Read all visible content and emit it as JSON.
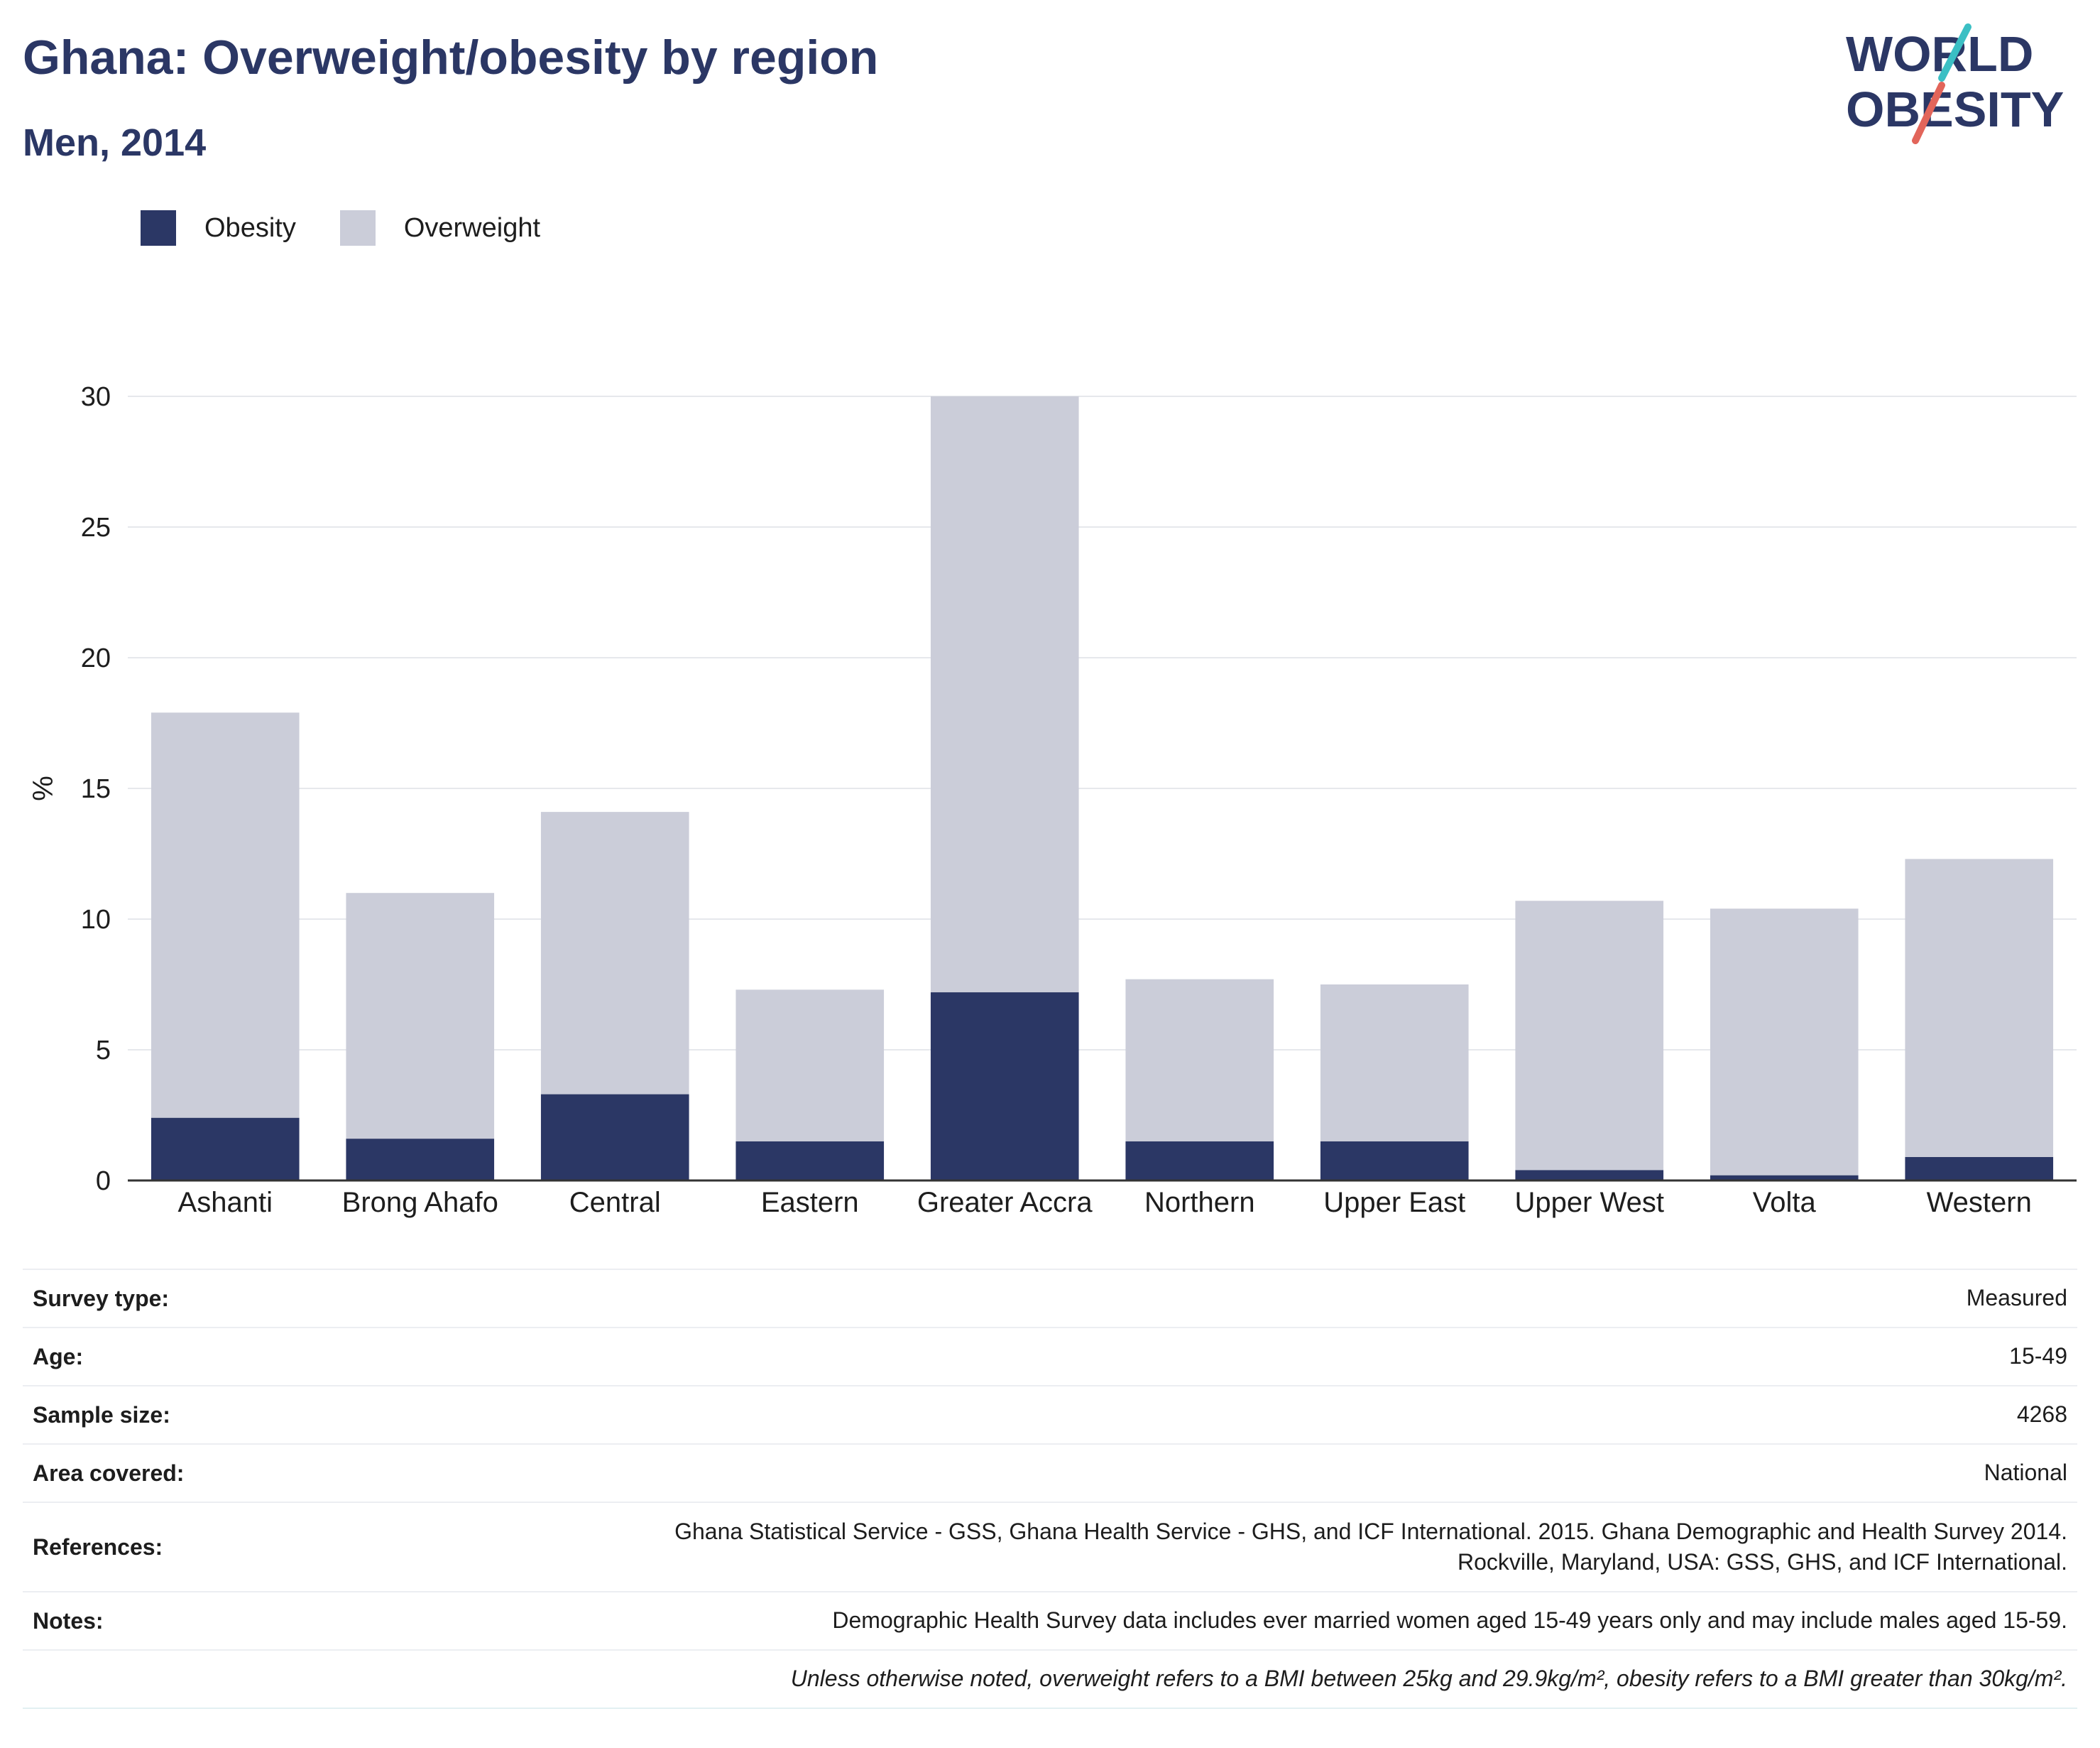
{
  "header": {
    "title": "Ghana: Overweight/obesity by region",
    "subtitle": "Men, 2014"
  },
  "logo": {
    "line1": "WORLD",
    "line2": "OBESITY",
    "colors": {
      "text": "#2b3765",
      "slash_top": "#3bbfc4",
      "slash_bottom": "#e2655a"
    }
  },
  "colors": {
    "obesity": "#2b3765",
    "overweight": "#cbcdd9",
    "grid": "#e6e8ec",
    "axis": "#333333"
  },
  "chart_data": {
    "type": "bar",
    "stacked": true,
    "categories": [
      "Ashanti",
      "Brong Ahafo",
      "Central",
      "Eastern",
      "Greater Accra",
      "Northern",
      "Upper East",
      "Upper West",
      "Volta",
      "Western"
    ],
    "series": [
      {
        "name": "Obesity",
        "values": [
          2.4,
          1.6,
          3.3,
          1.5,
          7.2,
          1.5,
          1.5,
          0.4,
          0.2,
          0.9
        ]
      },
      {
        "name": "Overweight",
        "values": [
          15.5,
          9.4,
          10.8,
          5.8,
          22.8,
          6.2,
          6.0,
          10.3,
          10.2,
          11.4
        ]
      }
    ],
    "ylabel": "%",
    "xlabel": "",
    "ylim": [
      0,
      30
    ],
    "yticks": [
      0,
      5,
      10,
      15,
      20,
      25,
      30
    ],
    "grid": true,
    "legend_position": "top-left"
  },
  "meta": [
    {
      "label": "Survey type:",
      "value": "Measured"
    },
    {
      "label": "Age:",
      "value": "15-49"
    },
    {
      "label": "Sample size:",
      "value": "4268"
    },
    {
      "label": "Area covered:",
      "value": "National"
    },
    {
      "label": "References:",
      "value_line1": "Ghana Statistical Service - GSS, Ghana Health Service - GHS, and ICF International. 2015. Ghana Demographic and Health Survey 2014.",
      "value_line2": "Rockville, Maryland, USA: GSS, GHS, and ICF International."
    },
    {
      "label": "Notes:",
      "value": "Demographic Health Survey data includes ever married women aged 15-49 years only and may include males aged 15-59."
    }
  ],
  "footnote": "Unless otherwise noted, overweight refers to a BMI between 25kg and 29.9kg/m², obesity refers to a BMI greater than 30kg/m²."
}
